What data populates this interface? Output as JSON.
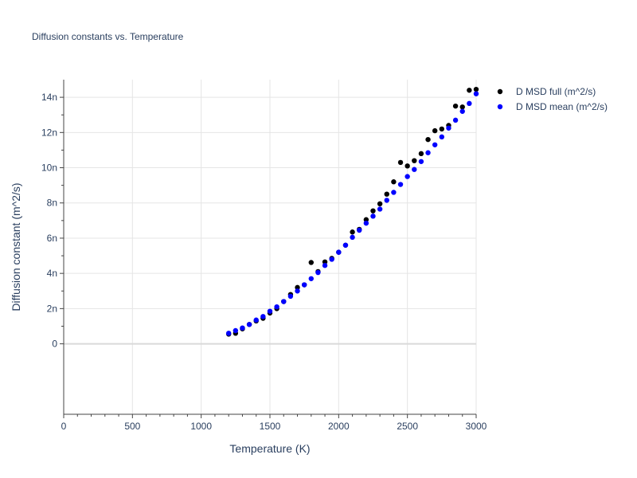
{
  "chart_data": {
    "type": "scatter",
    "title": "Diffusion constants vs. Temperature",
    "xlabel": "Temperature (K)",
    "ylabel": "Diffusion constant (m^2/s)",
    "xlim": [
      0,
      3000
    ],
    "ylim": [
      -4e-09,
      1.5e-08
    ],
    "x_ticks": [
      0,
      500,
      1000,
      1500,
      2000,
      2500,
      3000
    ],
    "x_tick_labels": [
      "0",
      "500",
      "1000",
      "1500",
      "2000",
      "2500",
      "3000"
    ],
    "y_ticks": [
      0,
      2e-09,
      4e-09,
      6e-09,
      8e-09,
      1e-08,
      1.2e-08,
      1.4e-08
    ],
    "y_tick_labels": [
      "0",
      "2n",
      "4n",
      "6n",
      "8n",
      "10n",
      "12n",
      "14n"
    ],
    "grid": true,
    "legend_position": "top-right",
    "series": [
      {
        "name": "D MSD full (m^2/s)",
        "color": "#000000",
        "x": [
          1200,
          1250,
          1300,
          1350,
          1400,
          1450,
          1500,
          1550,
          1600,
          1650,
          1700,
          1750,
          1800,
          1850,
          1900,
          1950,
          2000,
          2050,
          2100,
          2150,
          2200,
          2250,
          2300,
          2350,
          2400,
          2450,
          2500,
          2550,
          2600,
          2650,
          2700,
          2750,
          2800,
          2850,
          2900,
          2950,
          3000
        ],
        "y": [
          5.5e-10,
          6e-10,
          8.5e-10,
          1.1e-09,
          1.3e-09,
          1.45e-09,
          1.75e-09,
          2e-09,
          2.4e-09,
          2.8e-09,
          3.2e-09,
          3.35e-09,
          4.62e-09,
          4.1e-09,
          4.65e-09,
          4.85e-09,
          5.2e-09,
          5.6e-09,
          6.35e-09,
          6.5e-09,
          7.05e-09,
          7.55e-09,
          7.95e-09,
          8.5e-09,
          9.2e-09,
          1.03e-08,
          1.01e-08,
          1.04e-08,
          1.08e-08,
          1.16e-08,
          1.21e-08,
          1.22e-08,
          1.24e-08,
          1.35e-08,
          1.345e-08,
          1.44e-08,
          1.445e-08
        ]
      },
      {
        "name": "D MSD mean (m^2/s)",
        "color": "#0000ff",
        "x": [
          1200,
          1250,
          1300,
          1350,
          1400,
          1450,
          1500,
          1550,
          1600,
          1650,
          1700,
          1750,
          1800,
          1850,
          1900,
          1950,
          2000,
          2050,
          2100,
          2150,
          2200,
          2250,
          2300,
          2350,
          2400,
          2450,
          2500,
          2550,
          2600,
          2650,
          2700,
          2750,
          2800,
          2850,
          2900,
          2950,
          3000
        ],
        "y": [
          6e-10,
          7.5e-10,
          9e-10,
          1.1e-09,
          1.35e-09,
          1.55e-09,
          1.85e-09,
          2.1e-09,
          2.4e-09,
          2.7e-09,
          3e-09,
          3.35e-09,
          3.7e-09,
          4.05e-09,
          4.45e-09,
          4.8e-09,
          5.2e-09,
          5.6e-09,
          6.05e-09,
          6.45e-09,
          6.85e-09,
          7.25e-09,
          7.65e-09,
          8.15e-09,
          8.6e-09,
          9.05e-09,
          9.5e-09,
          9.9e-09,
          1.035e-08,
          1.085e-08,
          1.13e-08,
          1.175e-08,
          1.225e-08,
          1.27e-08,
          1.32e-08,
          1.365e-08,
          1.42e-08
        ]
      }
    ]
  }
}
